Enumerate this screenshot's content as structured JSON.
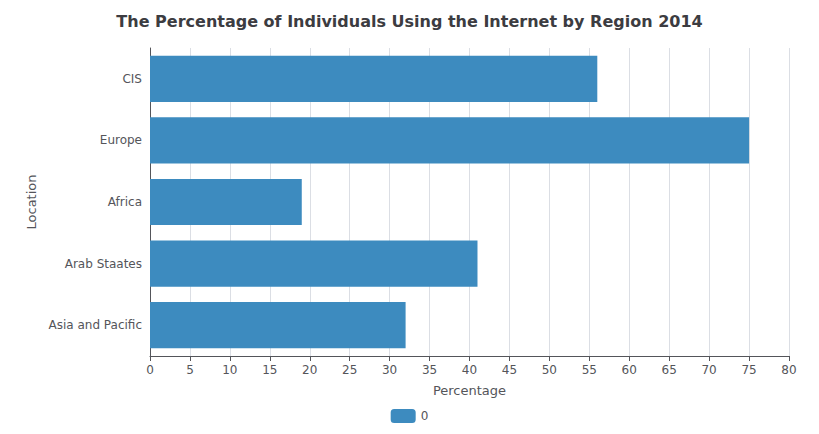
{
  "chart_data": {
    "type": "bar",
    "orientation": "horizontal",
    "title": "The Percentage of Individuals Using the Internet by Region 2014",
    "xlabel": "Percentage",
    "ylabel": "Location",
    "categories": [
      "Asia and Pacific",
      "Arab Staates",
      "Africa",
      "Europe",
      "CIS"
    ],
    "series": [
      {
        "name": "0",
        "color": "#3d8bbf",
        "values": [
          32,
          41,
          19,
          75,
          56
        ]
      }
    ],
    "xlim": [
      0,
      80
    ],
    "xticks": [
      0,
      5,
      10,
      15,
      20,
      25,
      30,
      35,
      40,
      45,
      50,
      55,
      60,
      65,
      70,
      75,
      80
    ],
    "grid": true,
    "legend": "bottom"
  }
}
